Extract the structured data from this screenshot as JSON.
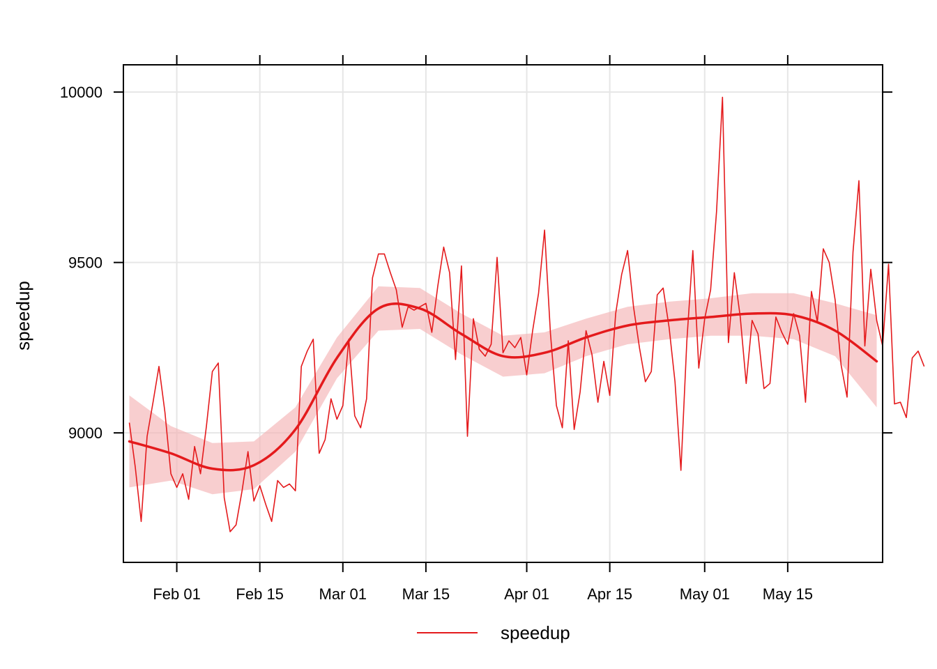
{
  "chart_data": {
    "type": "line",
    "ylabel": "speedup",
    "xlabel": "",
    "x_start": "2018-01-24",
    "x_end": "2018-05-30",
    "xlim": [
      "2018-01-23",
      "2018-05-31"
    ],
    "ylim": [
      8620,
      10080
    ],
    "x_ticks": [
      {
        "date": "2018-02-01",
        "label": "Feb 01"
      },
      {
        "date": "2018-02-15",
        "label": "Feb 15"
      },
      {
        "date": "2018-03-01",
        "label": "Mar 01"
      },
      {
        "date": "2018-03-15",
        "label": "Mar 15"
      },
      {
        "date": "2018-04-01",
        "label": "Apr 01"
      },
      {
        "date": "2018-04-15",
        "label": "Apr 15"
      },
      {
        "date": "2018-05-01",
        "label": "May 01"
      },
      {
        "date": "2018-05-15",
        "label": "May 15"
      }
    ],
    "y_ticks": [
      9000,
      9500,
      10000
    ],
    "grid": true,
    "legend": {
      "position": "bottom",
      "entries": [
        "speedup"
      ]
    },
    "colors": {
      "line": "#E41A1C",
      "band": "#F4B4B6",
      "grid": "#E6E6E6"
    },
    "series": [
      {
        "name": "speedup",
        "values": [
          9030,
          8900,
          8740,
          8990,
          9090,
          9195,
          9060,
          8880,
          8840,
          8880,
          8805,
          8960,
          8880,
          9020,
          9180,
          9205,
          8810,
          8710,
          8730,
          8830,
          8945,
          8800,
          8845,
          8790,
          8740,
          8860,
          8840,
          8850,
          8830,
          9195,
          9240,
          9275,
          8940,
          8980,
          9100,
          9040,
          9080,
          9275,
          9050,
          9015,
          9100,
          9455,
          9525,
          9525,
          9470,
          9420,
          9310,
          9370,
          9360,
          9370,
          9380,
          9295,
          9430,
          9545,
          9470,
          9215,
          9490,
          8990,
          9335,
          9245,
          9225,
          9260,
          9515,
          9235,
          9270,
          9250,
          9280,
          9170,
          9300,
          9410,
          9595,
          9290,
          9080,
          9015,
          9270,
          9010,
          9120,
          9300,
          9230,
          9090,
          9210,
          9110,
          9350,
          9465,
          9535,
          9370,
          9250,
          9150,
          9180,
          9405,
          9425,
          9310,
          9150,
          8890,
          9270,
          9535,
          9190,
          9335,
          9420,
          9650,
          9985,
          9265,
          9470,
          9340,
          9145,
          9330,
          9290,
          9130,
          9145,
          9340,
          9295,
          9260,
          9350,
          9285,
          9090,
          9415,
          9325,
          9540,
          9500,
          9390,
          9200,
          9105,
          9530,
          9740,
          9255,
          9480,
          9330,
          9255,
          9495,
          9085,
          9090,
          9045,
          9220,
          9240,
          9195
        ]
      }
    ],
    "smooth": {
      "x": [
        "2018-01-24",
        "2018-01-31",
        "2018-02-07",
        "2018-02-14",
        "2018-02-21",
        "2018-02-28",
        "2018-03-07",
        "2018-03-14",
        "2018-03-21",
        "2018-03-28",
        "2018-04-04",
        "2018-04-11",
        "2018-04-18",
        "2018-04-25",
        "2018-05-02",
        "2018-05-09",
        "2018-05-16",
        "2018-05-23",
        "2018-05-30"
      ],
      "fit": [
        8975,
        8940,
        8895,
        8905,
        9010,
        9220,
        9365,
        9365,
        9290,
        9225,
        9235,
        9280,
        9315,
        9330,
        9340,
        9350,
        9345,
        9300,
        9210
      ],
      "lower": [
        8840,
        8860,
        8820,
        8835,
        8945,
        9160,
        9300,
        9305,
        9230,
        9165,
        9175,
        9225,
        9260,
        9275,
        9285,
        9285,
        9275,
        9225,
        9075
      ],
      "upper": [
        9110,
        9020,
        8970,
        8975,
        9075,
        9280,
        9430,
        9425,
        9350,
        9285,
        9295,
        9335,
        9370,
        9385,
        9395,
        9410,
        9410,
        9380,
        9345
      ]
    }
  }
}
